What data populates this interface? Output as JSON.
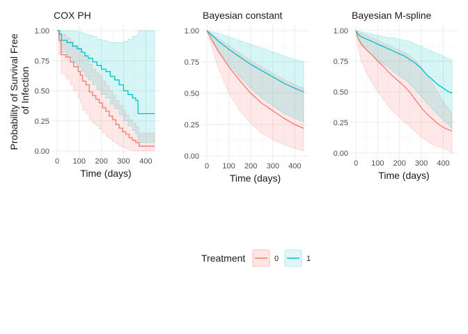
{
  "chart_data": [
    {
      "type": "line",
      "step": true,
      "title": "COX PH",
      "xlabel": "Time (days)",
      "ylabel": "Probability of Survival Free\nof Infection",
      "xlim": [
        0,
        440
      ],
      "ylim": [
        0,
        1
      ],
      "x_ticks": [
        0,
        100,
        200,
        300,
        400
      ],
      "y_ticks": [
        0.0,
        0.25,
        0.5,
        0.75,
        1.0
      ],
      "y_tick_labels": [
        "0.00",
        "0.25",
        "0.50",
        "0.75",
        "1.00"
      ],
      "grid": true,
      "series": [
        {
          "name": "0",
          "color": "#F8766D",
          "x": [
            0,
            8,
            18,
            40,
            60,
            75,
            95,
            105,
            115,
            130,
            145,
            160,
            175,
            190,
            205,
            220,
            235,
            250,
            265,
            280,
            295,
            310,
            325,
            340,
            355,
            370,
            440
          ],
          "y": [
            1.0,
            0.92,
            0.8,
            0.78,
            0.74,
            0.7,
            0.66,
            0.63,
            0.58,
            0.55,
            0.49,
            0.46,
            0.43,
            0.4,
            0.36,
            0.33,
            0.29,
            0.26,
            0.22,
            0.19,
            0.16,
            0.14,
            0.11,
            0.09,
            0.07,
            0.04,
            0.04
          ],
          "lower": [
            1.0,
            0.8,
            0.64,
            0.6,
            0.55,
            0.5,
            0.44,
            0.4,
            0.34,
            0.31,
            0.26,
            0.23,
            0.21,
            0.18,
            0.15,
            0.12,
            0.1,
            0.08,
            0.06,
            0.04,
            0.03,
            0.02,
            0.01,
            0.0,
            0.0,
            0.0,
            0.0
          ],
          "upper": [
            1.0,
            1.0,
            0.97,
            0.94,
            0.91,
            0.88,
            0.85,
            0.83,
            0.79,
            0.76,
            0.72,
            0.68,
            0.65,
            0.62,
            0.58,
            0.54,
            0.5,
            0.46,
            0.42,
            0.38,
            0.34,
            0.3,
            0.26,
            0.23,
            0.2,
            0.15,
            0.15
          ]
        },
        {
          "name": "1",
          "color": "#00BFC4",
          "x": [
            0,
            10,
            20,
            45,
            70,
            90,
            110,
            125,
            140,
            160,
            180,
            200,
            220,
            240,
            260,
            280,
            300,
            320,
            340,
            355,
            365,
            440
          ],
          "y": [
            1.0,
            0.97,
            0.92,
            0.9,
            0.87,
            0.85,
            0.82,
            0.79,
            0.77,
            0.74,
            0.71,
            0.68,
            0.66,
            0.62,
            0.59,
            0.55,
            0.5,
            0.47,
            0.44,
            0.42,
            0.31,
            0.31
          ],
          "lower": [
            1.0,
            0.9,
            0.82,
            0.78,
            0.73,
            0.7,
            0.66,
            0.62,
            0.59,
            0.55,
            0.51,
            0.47,
            0.44,
            0.39,
            0.35,
            0.3,
            0.25,
            0.21,
            0.17,
            0.14,
            0.07,
            0.07
          ],
          "upper": [
            1.0,
            1.0,
            1.0,
            1.0,
            1.0,
            0.99,
            0.98,
            0.97,
            0.96,
            0.95,
            0.93,
            0.92,
            0.91,
            0.9,
            0.9,
            0.9,
            0.91,
            0.93,
            0.95,
            0.96,
            1.0,
            1.0
          ]
        }
      ]
    },
    {
      "type": "line",
      "title": "Bayesian constant",
      "xlabel": "Time (days)",
      "xlim": [
        0,
        440
      ],
      "ylim": [
        0,
        1
      ],
      "x_ticks": [
        0,
        100,
        200,
        300,
        400
      ],
      "y_ticks": [
        0.0,
        0.25,
        0.5,
        0.75,
        1.0
      ],
      "y_tick_labels": [
        "0.00",
        "0.25",
        "0.50",
        "0.75",
        "1.00"
      ],
      "grid": true,
      "series": [
        {
          "name": "0",
          "color": "#F8766D",
          "x": [
            0,
            50,
            100,
            150,
            200,
            250,
            300,
            350,
            400,
            440
          ],
          "y": [
            1.0,
            0.84,
            0.71,
            0.6,
            0.5,
            0.42,
            0.36,
            0.3,
            0.25,
            0.22
          ],
          "lower": [
            1.0,
            0.71,
            0.5,
            0.36,
            0.26,
            0.18,
            0.13,
            0.09,
            0.06,
            0.04
          ],
          "upper": [
            1.0,
            0.94,
            0.88,
            0.82,
            0.76,
            0.71,
            0.66,
            0.61,
            0.57,
            0.54
          ]
        },
        {
          "name": "1",
          "color": "#00BFC4",
          "x": [
            0,
            50,
            100,
            150,
            200,
            250,
            300,
            350,
            400,
            440
          ],
          "y": [
            1.0,
            0.92,
            0.85,
            0.79,
            0.73,
            0.68,
            0.63,
            0.58,
            0.54,
            0.51
          ],
          "lower": [
            1.0,
            0.85,
            0.73,
            0.63,
            0.54,
            0.46,
            0.4,
            0.34,
            0.3,
            0.27
          ],
          "upper": [
            1.0,
            0.98,
            0.95,
            0.92,
            0.89,
            0.86,
            0.83,
            0.8,
            0.77,
            0.75
          ]
        }
      ]
    },
    {
      "type": "line",
      "title": "Bayesian M-spline",
      "xlabel": "Time (days)",
      "xlim": [
        0,
        440
      ],
      "ylim": [
        0,
        1
      ],
      "x_ticks": [
        0,
        100,
        200,
        300,
        400
      ],
      "y_ticks": [
        0.0,
        0.25,
        0.5,
        0.75,
        1.0
      ],
      "y_tick_labels": [
        "0.00",
        "0.25",
        "0.50",
        "0.75",
        "1.00"
      ],
      "grid": true,
      "series": [
        {
          "name": "0",
          "color": "#F8766D",
          "x": [
            0,
            10,
            25,
            50,
            75,
            100,
            125,
            150,
            175,
            200,
            225,
            250,
            275,
            300,
            325,
            350,
            375,
            400,
            425,
            440
          ],
          "y": [
            1.0,
            0.94,
            0.89,
            0.84,
            0.8,
            0.75,
            0.71,
            0.66,
            0.62,
            0.58,
            0.54,
            0.49,
            0.43,
            0.37,
            0.32,
            0.28,
            0.24,
            0.21,
            0.19,
            0.18
          ],
          "lower": [
            1.0,
            0.86,
            0.75,
            0.65,
            0.57,
            0.5,
            0.44,
            0.38,
            0.33,
            0.29,
            0.25,
            0.21,
            0.17,
            0.13,
            0.1,
            0.07,
            0.05,
            0.04,
            0.02,
            0.0
          ],
          "upper": [
            1.0,
            0.99,
            0.98,
            0.96,
            0.94,
            0.92,
            0.9,
            0.88,
            0.86,
            0.84,
            0.82,
            0.79,
            0.75,
            0.7,
            0.64,
            0.57,
            0.5,
            0.42,
            0.36,
            0.33
          ]
        },
        {
          "name": "1",
          "color": "#00BFC4",
          "x": [
            0,
            10,
            25,
            50,
            75,
            100,
            125,
            150,
            175,
            200,
            225,
            250,
            275,
            300,
            325,
            350,
            375,
            400,
            425,
            440
          ],
          "y": [
            1.0,
            0.97,
            0.95,
            0.93,
            0.91,
            0.89,
            0.87,
            0.85,
            0.83,
            0.81,
            0.79,
            0.76,
            0.73,
            0.69,
            0.64,
            0.6,
            0.56,
            0.53,
            0.5,
            0.49
          ],
          "lower": [
            1.0,
            0.93,
            0.88,
            0.84,
            0.8,
            0.76,
            0.73,
            0.7,
            0.66,
            0.63,
            0.6,
            0.56,
            0.51,
            0.46,
            0.41,
            0.36,
            0.31,
            0.27,
            0.23,
            0.2
          ],
          "upper": [
            1.0,
            1.0,
            0.99,
            0.98,
            0.97,
            0.96,
            0.95,
            0.94,
            0.94,
            0.93,
            0.92,
            0.91,
            0.89,
            0.87,
            0.85,
            0.83,
            0.81,
            0.79,
            0.77,
            0.76
          ]
        }
      ]
    }
  ],
  "legend": {
    "title": "Treatment",
    "placement": "bottom-center",
    "items": [
      {
        "label": "0",
        "line_color": "#F8766D",
        "fill_color": "#FDE6E4"
      },
      {
        "label": "1",
        "line_color": "#00BFC4",
        "fill_color": "#E0F6F7"
      }
    ]
  }
}
